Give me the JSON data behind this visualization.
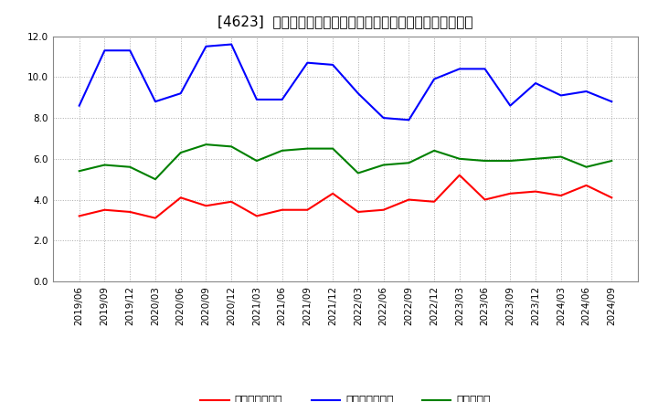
{
  "title": "[4623]  売上債権回転率、買入債務回転率、在庫回転率の推移",
  "labels": [
    "2019/06",
    "2019/09",
    "2019/12",
    "2020/03",
    "2020/06",
    "2020/09",
    "2020/12",
    "2021/03",
    "2021/06",
    "2021/09",
    "2021/12",
    "2022/03",
    "2022/06",
    "2022/09",
    "2022/12",
    "2023/03",
    "2023/06",
    "2023/09",
    "2023/12",
    "2024/03",
    "2024/06",
    "2024/09"
  ],
  "receivables_turnover": [
    3.2,
    3.5,
    3.4,
    3.1,
    4.1,
    3.7,
    3.9,
    3.2,
    3.5,
    3.5,
    4.3,
    3.4,
    3.5,
    4.0,
    3.9,
    5.2,
    4.0,
    4.3,
    4.4,
    4.2,
    4.7,
    4.1
  ],
  "payables_turnover": [
    8.6,
    11.3,
    11.3,
    8.8,
    9.2,
    11.5,
    11.6,
    8.9,
    8.9,
    10.7,
    10.6,
    9.2,
    8.0,
    7.9,
    9.9,
    10.4,
    10.4,
    8.6,
    9.7,
    9.1,
    9.3,
    8.8
  ],
  "inventory_turnover": [
    5.4,
    5.7,
    5.6,
    5.0,
    6.3,
    6.7,
    6.6,
    5.9,
    6.4,
    6.5,
    6.5,
    5.3,
    5.7,
    5.8,
    6.4,
    6.0,
    5.9,
    5.9,
    6.0,
    6.1,
    5.6,
    5.9
  ],
  "line_colors": {
    "receivables": "#ff0000",
    "payables": "#0000ff",
    "inventory": "#008000"
  },
  "legend_labels": {
    "receivables": "売上債権回転率",
    "payables": "買入債務回転率",
    "inventory": "在庫回転率"
  },
  "ylim": [
    0.0,
    12.0
  ],
  "yticks": [
    0.0,
    2.0,
    4.0,
    6.0,
    8.0,
    10.0,
    12.0
  ],
  "bg_color": "#ffffff",
  "plot_bg_color": "#ffffff",
  "grid_color": "#aaaaaa",
  "title_fontsize": 11,
  "label_fontsize": 7.5,
  "legend_fontsize": 9
}
